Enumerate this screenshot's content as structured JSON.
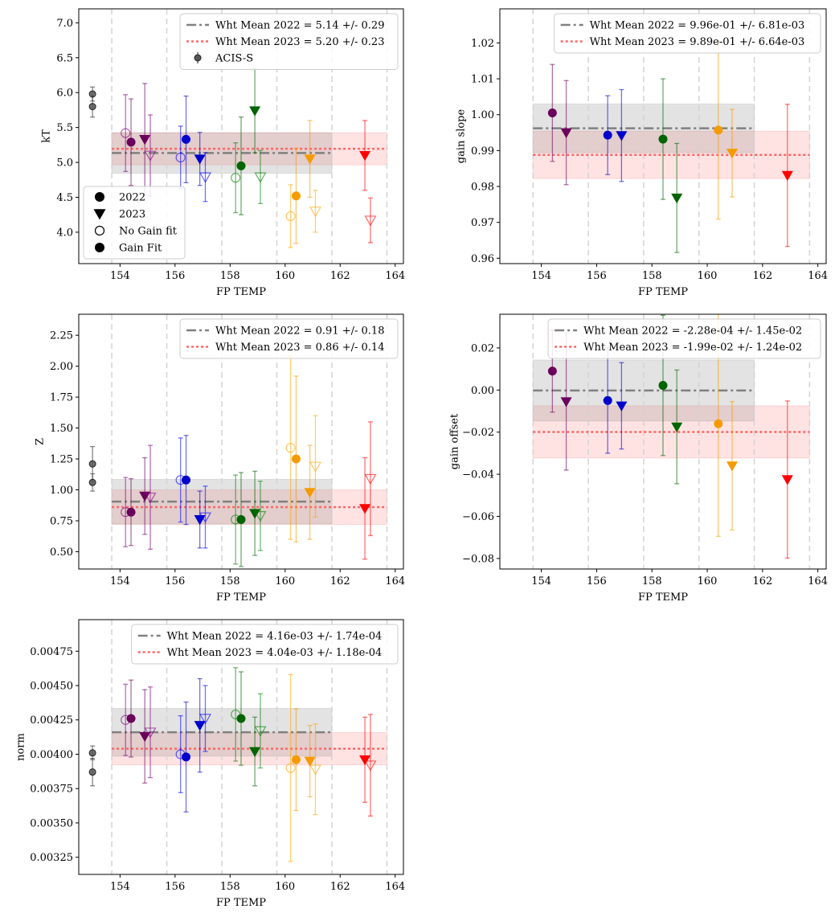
{
  "colors": {
    "s154": "#800080",
    "s156": "#0000ff",
    "s158": "#008000",
    "s160": "#ffa500",
    "s162": "#ff0000",
    "dark154": "#6b005b",
    "dark156": "#0000cc",
    "dark158": "#006400",
    "dark160": "#f59b00",
    "wht2022": "#808080",
    "wht2023": "#ff6666",
    "acis": "#444444"
  },
  "bin_edges": [
    153.7,
    155.7,
    157.7,
    159.7,
    161.7,
    163.7
  ],
  "chart_data": [
    {
      "id": "kT",
      "type": "scatter",
      "xlabel": "FP TEMP",
      "ylabel": "kT",
      "xlim": [
        152.5,
        164.3
      ],
      "ylim": [
        3.55,
        7.2
      ],
      "xticks": [
        154,
        156,
        158,
        160,
        162,
        164
      ],
      "yticks": [
        4.0,
        4.5,
        5.0,
        5.5,
        6.0,
        6.5,
        7.0
      ],
      "ytick_labels": [
        "4.0",
        "4.5",
        "5.0",
        "5.5",
        "6.0",
        "6.5",
        "7.0"
      ],
      "legend": [
        "Wht Mean 2022 = 5.14 +/- 0.29",
        "Wht Mean 2023 = 5.20 +/- 0.23",
        "ACIS-S"
      ],
      "legend_loc": "upper right",
      "marker_legend": [
        "2022",
        "2023",
        "No Gain fit",
        "Gain Fit"
      ],
      "marker_legend_loc": "lower left",
      "mean_2022": 5.135,
      "err_2022": 0.29,
      "span_2022": [
        153.7,
        161.7
      ],
      "mean_2023": 5.195,
      "err_2023": 0.23,
      "span_2023": [
        153.7,
        163.7
      ],
      "acis": [
        {
          "x": 153.0,
          "y": 5.98,
          "e": 0.1
        },
        {
          "x": 153.0,
          "y": 5.8,
          "e": 0.15
        }
      ],
      "points": [
        {
          "x": 154.2,
          "y": 5.42,
          "e": 0.55,
          "marker": "o",
          "filled": false,
          "c": "s154"
        },
        {
          "x": 154.4,
          "y": 5.29,
          "e": 0.62,
          "marker": "o",
          "filled": true,
          "c": "dark154"
        },
        {
          "x": 154.9,
          "y": 5.33,
          "e": 0.8,
          "marker": "v",
          "filled": true,
          "c": "dark154"
        },
        {
          "x": 155.1,
          "y": 5.1,
          "e": 0.58,
          "marker": "v",
          "filled": false,
          "c": "s154"
        },
        {
          "x": 156.2,
          "y": 5.07,
          "e": 0.45,
          "marker": "o",
          "filled": false,
          "c": "s156"
        },
        {
          "x": 156.4,
          "y": 5.33,
          "e": 0.62,
          "marker": "o",
          "filled": true,
          "c": "dark156"
        },
        {
          "x": 156.9,
          "y": 5.05,
          "e": 0.38,
          "marker": "v",
          "filled": true,
          "c": "dark156"
        },
        {
          "x": 157.1,
          "y": 4.79,
          "e": 0.35,
          "marker": "v",
          "filled": false,
          "c": "s156"
        },
        {
          "x": 158.2,
          "y": 4.78,
          "e": 0.5,
          "marker": "o",
          "filled": false,
          "c": "s158"
        },
        {
          "x": 158.4,
          "y": 4.95,
          "e": 0.7,
          "marker": "o",
          "filled": true,
          "c": "dark158"
        },
        {
          "x": 158.9,
          "y": 5.74,
          "e": 0.6,
          "marker": "v",
          "filled": true,
          "c": "dark158"
        },
        {
          "x": 159.1,
          "y": 4.79,
          "e": 0.38,
          "marker": "v",
          "filled": false,
          "c": "s158"
        },
        {
          "x": 160.2,
          "y": 4.23,
          "e": 0.45,
          "marker": "o",
          "filled": false,
          "c": "s160"
        },
        {
          "x": 160.4,
          "y": 4.52,
          "e": 0.68,
          "marker": "o",
          "filled": true,
          "c": "dark160"
        },
        {
          "x": 160.9,
          "y": 5.05,
          "e": 0.55,
          "marker": "v",
          "filled": true,
          "c": "dark160"
        },
        {
          "x": 161.1,
          "y": 4.3,
          "e": 0.3,
          "marker": "v",
          "filled": false,
          "c": "s160"
        },
        {
          "x": 162.9,
          "y": 5.1,
          "e": 0.5,
          "marker": "v",
          "filled": true,
          "c": "s162"
        },
        {
          "x": 163.1,
          "y": 4.17,
          "e": 0.32,
          "marker": "v",
          "filled": false,
          "c": "s162"
        }
      ]
    },
    {
      "id": "gain_slope",
      "type": "scatter",
      "xlabel": "FP TEMP",
      "ylabel": "gain slope",
      "xlim": [
        152.5,
        164.3
      ],
      "ylim": [
        0.9585,
        1.0295
      ],
      "xticks": [
        154,
        156,
        158,
        160,
        162,
        164
      ],
      "yticks": [
        0.96,
        0.97,
        0.98,
        0.99,
        1.0,
        1.01,
        1.02
      ],
      "ytick_labels": [
        "0.96",
        "0.97",
        "0.98",
        "0.99",
        "1.00",
        "1.01",
        "1.02"
      ],
      "legend": [
        "Wht Mean 2022 = 9.96e-01 +/- 6.81e-03",
        "Wht Mean 2023 = 9.89e-01 +/- 6.64e-03"
      ],
      "legend_loc": "upper right",
      "mean_2022": 0.9962,
      "err_2022": 0.0068,
      "span_2022": [
        153.7,
        161.7
      ],
      "mean_2023": 0.9888,
      "err_2023": 0.0066,
      "span_2023": [
        153.7,
        163.7
      ],
      "points": [
        {
          "x": 154.4,
          "y": 1.0005,
          "e": 0.0135,
          "marker": "o",
          "filled": true,
          "c": "dark154"
        },
        {
          "x": 154.9,
          "y": 0.995,
          "e": 0.0145,
          "marker": "v",
          "filled": true,
          "c": "dark154"
        },
        {
          "x": 156.4,
          "y": 0.9943,
          "e": 0.011,
          "marker": "o",
          "filled": true,
          "c": "dark156"
        },
        {
          "x": 156.9,
          "y": 0.9942,
          "e": 0.0128,
          "marker": "v",
          "filled": true,
          "c": "dark156"
        },
        {
          "x": 158.4,
          "y": 0.9932,
          "e": 0.0168,
          "marker": "o",
          "filled": true,
          "c": "dark158"
        },
        {
          "x": 158.9,
          "y": 0.9768,
          "e": 0.0152,
          "marker": "v",
          "filled": true,
          "c": "dark158"
        },
        {
          "x": 160.4,
          "y": 0.9957,
          "e": 0.0248,
          "marker": "o",
          "filled": true,
          "c": "dark160"
        },
        {
          "x": 160.9,
          "y": 0.9893,
          "e": 0.0122,
          "marker": "v",
          "filled": true,
          "c": "dark160"
        },
        {
          "x": 162.9,
          "y": 0.9831,
          "e": 0.0198,
          "marker": "v",
          "filled": true,
          "c": "s162"
        }
      ]
    },
    {
      "id": "Z",
      "type": "scatter",
      "xlabel": "FP TEMP",
      "ylabel": "Z",
      "xlim": [
        152.5,
        164.3
      ],
      "ylim": [
        0.36,
        2.42
      ],
      "xticks": [
        154,
        156,
        158,
        160,
        162,
        164
      ],
      "yticks": [
        0.5,
        0.75,
        1.0,
        1.25,
        1.5,
        1.75,
        2.0,
        2.25
      ],
      "ytick_labels": [
        "0.50",
        "0.75",
        "1.00",
        "1.25",
        "1.50",
        "1.75",
        "2.00",
        "2.25"
      ],
      "legend": [
        "Wht Mean 2022 = 0.91 +/- 0.18",
        "Wht Mean 2023 = 0.86 +/- 0.14"
      ],
      "legend_loc": "upper right",
      "mean_2022": 0.905,
      "err_2022": 0.18,
      "span_2022": [
        153.7,
        161.7
      ],
      "mean_2023": 0.86,
      "err_2023": 0.14,
      "span_2023": [
        153.7,
        163.7
      ],
      "acis": [
        {
          "x": 153.0,
          "y": 1.21,
          "e": 0.14
        },
        {
          "x": 153.0,
          "y": 1.06,
          "e": 0.07
        }
      ],
      "points": [
        {
          "x": 154.2,
          "y": 0.82,
          "e": 0.28,
          "marker": "o",
          "filled": false,
          "c": "s154"
        },
        {
          "x": 154.4,
          "y": 0.82,
          "e": 0.27,
          "marker": "o",
          "filled": true,
          "c": "dark154"
        },
        {
          "x": 154.9,
          "y": 0.95,
          "e": 0.31,
          "marker": "v",
          "filled": true,
          "c": "dark154"
        },
        {
          "x": 155.1,
          "y": 0.94,
          "e": 0.42,
          "marker": "v",
          "filled": false,
          "c": "s154"
        },
        {
          "x": 156.2,
          "y": 1.08,
          "e": 0.34,
          "marker": "o",
          "filled": false,
          "c": "s156"
        },
        {
          "x": 156.4,
          "y": 1.08,
          "e": 0.36,
          "marker": "o",
          "filled": true,
          "c": "dark156"
        },
        {
          "x": 156.9,
          "y": 0.76,
          "e": 0.23,
          "marker": "v",
          "filled": true,
          "c": "dark156"
        },
        {
          "x": 157.1,
          "y": 0.78,
          "e": 0.25,
          "marker": "v",
          "filled": false,
          "c": "s156"
        },
        {
          "x": 158.2,
          "y": 0.76,
          "e": 0.36,
          "marker": "o",
          "filled": false,
          "c": "s158"
        },
        {
          "x": 158.4,
          "y": 0.76,
          "e": 0.38,
          "marker": "o",
          "filled": true,
          "c": "dark158"
        },
        {
          "x": 158.9,
          "y": 0.81,
          "e": 0.34,
          "marker": "v",
          "filled": true,
          "c": "dark158"
        },
        {
          "x": 159.1,
          "y": 0.79,
          "e": 0.28,
          "marker": "v",
          "filled": false,
          "c": "s158"
        },
        {
          "x": 160.2,
          "y": 1.34,
          "e": 0.74,
          "marker": "o",
          "filled": false,
          "c": "s160"
        },
        {
          "x": 160.4,
          "y": 1.25,
          "e": 0.67,
          "marker": "o",
          "filled": true,
          "c": "dark160"
        },
        {
          "x": 160.9,
          "y": 0.98,
          "e": 0.38,
          "marker": "v",
          "filled": true,
          "c": "dark160"
        },
        {
          "x": 161.1,
          "y": 1.19,
          "e": 0.41,
          "marker": "v",
          "filled": false,
          "c": "s160"
        },
        {
          "x": 162.9,
          "y": 0.85,
          "e": 0.41,
          "marker": "v",
          "filled": true,
          "c": "s162"
        },
        {
          "x": 163.1,
          "y": 1.09,
          "e": 0.46,
          "marker": "v",
          "filled": false,
          "c": "s162"
        }
      ]
    },
    {
      "id": "gain_offset",
      "type": "scatter",
      "xlabel": "FP TEMP",
      "ylabel": "gain offset",
      "xlim": [
        152.5,
        164.3
      ],
      "ylim": [
        -0.085,
        0.036
      ],
      "xticks": [
        154,
        156,
        158,
        160,
        162,
        164
      ],
      "yticks": [
        -0.08,
        -0.06,
        -0.04,
        -0.02,
        0.0,
        0.02
      ],
      "ytick_labels": [
        "−0.08",
        "−0.06",
        "−0.04",
        "−0.02",
        "0.00",
        "0.02"
      ],
      "legend": [
        "Wht Mean 2022 = -2.28e-04 +/- 1.45e-02",
        "Wht Mean 2023 = -1.99e-02 +/- 1.24e-02"
      ],
      "legend_loc": "upper right",
      "mean_2022": -0.00023,
      "err_2022": 0.0145,
      "span_2022": [
        153.7,
        161.7
      ],
      "mean_2023": -0.0199,
      "err_2023": 0.0124,
      "span_2023": [
        153.7,
        163.7
      ],
      "points": [
        {
          "x": 154.4,
          "y": 0.009,
          "e": 0.0195,
          "marker": "o",
          "filled": true,
          "c": "dark154"
        },
        {
          "x": 154.9,
          "y": -0.0055,
          "e": 0.0325,
          "marker": "v",
          "filled": true,
          "c": "dark154"
        },
        {
          "x": 156.4,
          "y": -0.005,
          "e": 0.025,
          "marker": "o",
          "filled": true,
          "c": "dark156"
        },
        {
          "x": 156.9,
          "y": -0.0075,
          "e": 0.0205,
          "marker": "v",
          "filled": true,
          "c": "dark156"
        },
        {
          "x": 158.4,
          "y": 0.0022,
          "e": 0.0333,
          "marker": "o",
          "filled": true,
          "c": "dark158"
        },
        {
          "x": 158.9,
          "y": -0.0175,
          "e": 0.027,
          "marker": "v",
          "filled": true,
          "c": "dark158"
        },
        {
          "x": 160.4,
          "y": -0.016,
          "e": 0.0535,
          "marker": "o",
          "filled": true,
          "c": "dark160"
        },
        {
          "x": 160.9,
          "y": -0.036,
          "e": 0.0305,
          "marker": "v",
          "filled": true,
          "c": "dark160"
        },
        {
          "x": 162.9,
          "y": -0.0425,
          "e": 0.0373,
          "marker": "v",
          "filled": true,
          "c": "s162"
        }
      ]
    },
    {
      "id": "norm",
      "type": "scatter",
      "xlabel": "FP TEMP",
      "ylabel": "norm",
      "xlim": [
        152.5,
        164.3
      ],
      "ylim": [
        0.003125,
        0.00498
      ],
      "xticks": [
        154,
        156,
        158,
        160,
        162,
        164
      ],
      "yticks": [
        0.00325,
        0.0035,
        0.00375,
        0.004,
        0.00425,
        0.0045,
        0.00475
      ],
      "ytick_labels": [
        "0.00325",
        "0.00350",
        "0.00375",
        "0.00400",
        "0.00425",
        "0.00450",
        "0.00475"
      ],
      "legend": [
        "Wht Mean 2022 = 4.16e-03 +/- 1.74e-04",
        "Wht Mean 2023 = 4.04e-03 +/- 1.18e-04"
      ],
      "legend_loc": "upper right",
      "mean_2022": 0.00416,
      "err_2022": 0.000174,
      "span_2022": [
        153.7,
        161.7
      ],
      "mean_2023": 0.00404,
      "err_2023": 0.000118,
      "span_2023": [
        153.7,
        163.7
      ],
      "acis": [
        {
          "x": 153.0,
          "y": 0.00401,
          "e": 5e-05
        },
        {
          "x": 153.0,
          "y": 0.00387,
          "e": 0.0001
        }
      ],
      "points": [
        {
          "x": 154.2,
          "y": 0.00425,
          "e": 0.00026,
          "marker": "o",
          "filled": false,
          "c": "s154"
        },
        {
          "x": 154.4,
          "y": 0.00426,
          "e": 0.00028,
          "marker": "o",
          "filled": true,
          "c": "dark154"
        },
        {
          "x": 154.9,
          "y": 0.00413,
          "e": 0.00034,
          "marker": "v",
          "filled": true,
          "c": "dark154"
        },
        {
          "x": 155.1,
          "y": 0.00416,
          "e": 0.00033,
          "marker": "v",
          "filled": false,
          "c": "s154"
        },
        {
          "x": 156.2,
          "y": 0.004,
          "e": 0.00028,
          "marker": "o",
          "filled": false,
          "c": "s156"
        },
        {
          "x": 156.4,
          "y": 0.00398,
          "e": 0.0004,
          "marker": "o",
          "filled": true,
          "c": "dark156"
        },
        {
          "x": 156.9,
          "y": 0.00421,
          "e": 0.00034,
          "marker": "v",
          "filled": true,
          "c": "dark156"
        },
        {
          "x": 157.1,
          "y": 0.00426,
          "e": 0.00024,
          "marker": "v",
          "filled": false,
          "c": "s156"
        },
        {
          "x": 158.2,
          "y": 0.00429,
          "e": 0.00034,
          "marker": "o",
          "filled": false,
          "c": "s158"
        },
        {
          "x": 158.4,
          "y": 0.00426,
          "e": 0.00034,
          "marker": "o",
          "filled": true,
          "c": "dark158"
        },
        {
          "x": 158.9,
          "y": 0.00402,
          "e": 0.00025,
          "marker": "v",
          "filled": true,
          "c": "dark158"
        },
        {
          "x": 159.1,
          "y": 0.00417,
          "e": 0.00027,
          "marker": "v",
          "filled": false,
          "c": "s158"
        },
        {
          "x": 160.2,
          "y": 0.0039,
          "e": 0.00068,
          "marker": "o",
          "filled": false,
          "c": "s160"
        },
        {
          "x": 160.4,
          "y": 0.00396,
          "e": 0.00037,
          "marker": "o",
          "filled": true,
          "c": "dark160"
        },
        {
          "x": 160.9,
          "y": 0.00395,
          "e": 0.00026,
          "marker": "v",
          "filled": true,
          "c": "dark160"
        },
        {
          "x": 161.1,
          "y": 0.00389,
          "e": 0.00033,
          "marker": "v",
          "filled": false,
          "c": "s160"
        },
        {
          "x": 162.9,
          "y": 0.00396,
          "e": 0.00031,
          "marker": "v",
          "filled": true,
          "c": "s162"
        },
        {
          "x": 163.1,
          "y": 0.00392,
          "e": 0.00037,
          "marker": "v",
          "filled": false,
          "c": "s162"
        }
      ]
    }
  ]
}
